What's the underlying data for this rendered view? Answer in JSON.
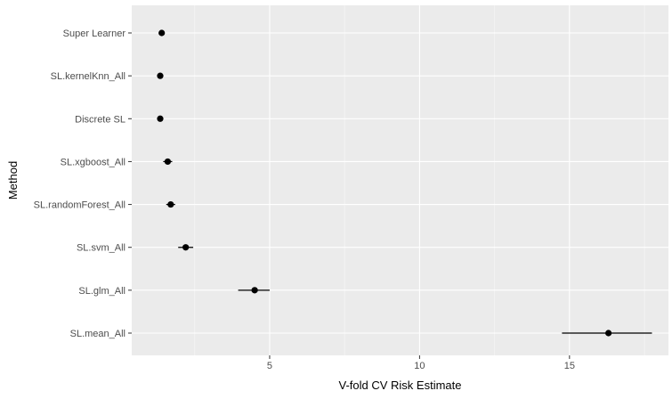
{
  "chart_data": {
    "type": "scatter",
    "subtype": "point-range",
    "orientation": "horizontal",
    "xlabel": "V-fold CV Risk Estimate",
    "ylabel": "Method",
    "xlim": [
      0.4,
      18.3
    ],
    "x_ticks": [
      5,
      10,
      15
    ],
    "x_minor_ticks": [
      2.5,
      7.5,
      12.5,
      17.5
    ],
    "grid": true,
    "legend": "none",
    "categories": [
      "Super Learner",
      "SL.kernelKnn_All",
      "Discrete SL",
      "SL.xgboost_All",
      "SL.randomForest_All",
      "SL.svm_All",
      "SL.glm_All",
      "SL.mean_All"
    ],
    "estimates": [
      1.4,
      1.35,
      1.35,
      1.6,
      1.7,
      2.2,
      4.5,
      16.3
    ],
    "ci_lower": [
      1.3,
      1.25,
      1.25,
      1.45,
      1.55,
      1.95,
      3.95,
      14.75
    ],
    "ci_upper": [
      1.5,
      1.45,
      1.45,
      1.75,
      1.85,
      2.45,
      5.0,
      17.75
    ]
  },
  "colors": {
    "panel_background": "#ebebeb",
    "grid_major": "#ffffff",
    "grid_minor": "#f5f5f5",
    "point": "#000000",
    "tick_text": "#4d4d4d",
    "title_text": "#000000"
  }
}
